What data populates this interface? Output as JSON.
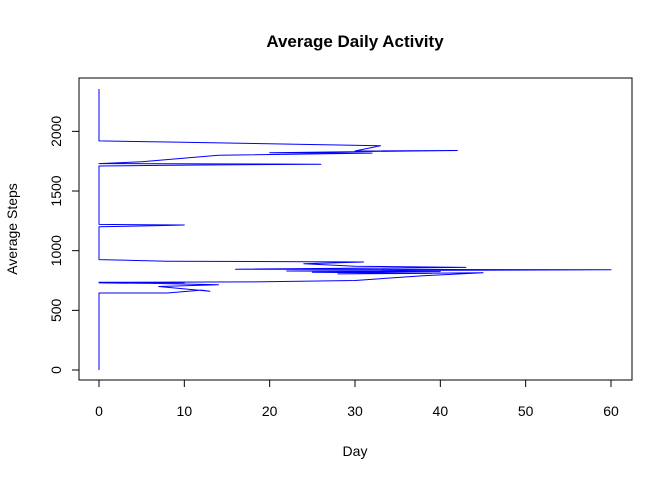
{
  "chart_data": {
    "type": "line",
    "title": "Average Daily Activity",
    "xlabel": "Day",
    "ylabel": "Average Steps",
    "xlim": [
      0,
      60
    ],
    "ylim": [
      0,
      2355
    ],
    "x_ticks": [
      0,
      10,
      20,
      30,
      40,
      50,
      60
    ],
    "y_ticks": [
      0,
      500,
      1000,
      1500,
      2000
    ],
    "grid": false,
    "color": "#0000ff",
    "series": [
      {
        "name": "",
        "points": [
          [
            0,
            0
          ],
          [
            0,
            645
          ],
          [
            8,
            645
          ],
          [
            12,
            670
          ],
          [
            13,
            660
          ],
          [
            10,
            680
          ],
          [
            7,
            700
          ],
          [
            12,
            710
          ],
          [
            14,
            715
          ],
          [
            7,
            725
          ],
          [
            0,
            730
          ],
          [
            10,
            732
          ],
          [
            0,
            735
          ],
          [
            18,
            738
          ],
          [
            30,
            750
          ],
          [
            38,
            790
          ],
          [
            45,
            815
          ],
          [
            28,
            805
          ],
          [
            39,
            810
          ],
          [
            25,
            820
          ],
          [
            40,
            825
          ],
          [
            22,
            830
          ],
          [
            38,
            835
          ],
          [
            60,
            840
          ],
          [
            16,
            845
          ],
          [
            43,
            860
          ],
          [
            30,
            870
          ],
          [
            24,
            890
          ],
          [
            31,
            905
          ],
          [
            8,
            912
          ],
          [
            0,
            925
          ],
          [
            0,
            1200
          ],
          [
            7,
            1210
          ],
          [
            10,
            1215
          ],
          [
            0,
            1220
          ],
          [
            0,
            1710
          ],
          [
            7,
            1715
          ],
          [
            16,
            1720
          ],
          [
            26,
            1725
          ],
          [
            0,
            1730
          ],
          [
            5,
            1745
          ],
          [
            14,
            1800
          ],
          [
            32,
            1818
          ],
          [
            20,
            1820
          ],
          [
            42,
            1840
          ],
          [
            30,
            1835
          ],
          [
            33,
            1880
          ],
          [
            9,
            1910
          ],
          [
            0,
            1920
          ],
          [
            0,
            2355
          ]
        ]
      }
    ]
  }
}
